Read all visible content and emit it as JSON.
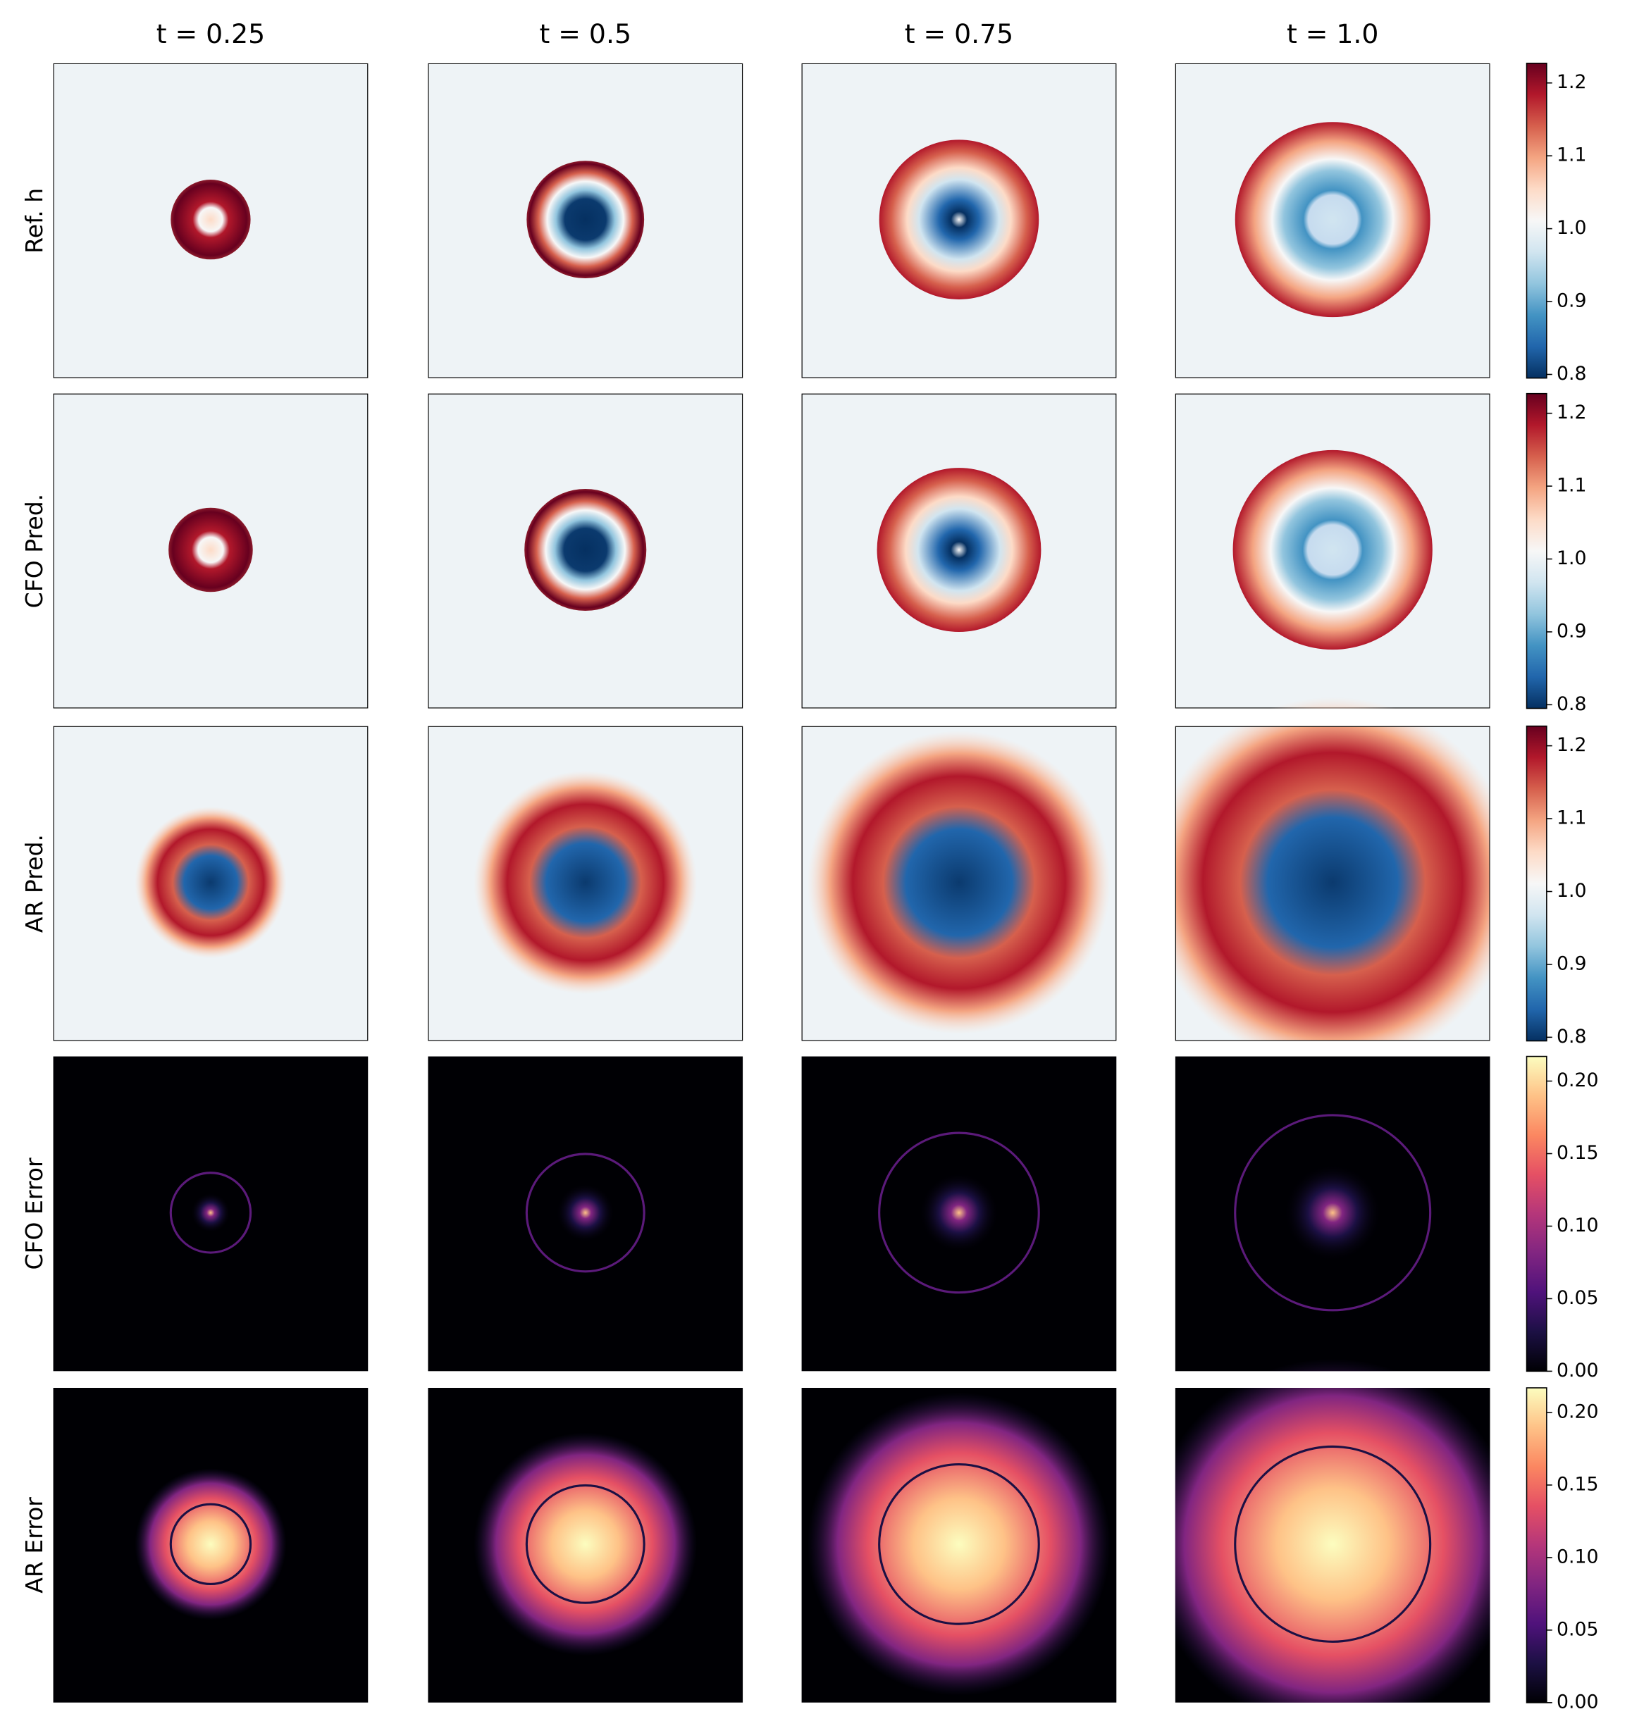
{
  "chart_data": {
    "type": "heatmap",
    "columns": [
      "t = 0.25",
      "t = 0.5",
      "t = 0.75",
      "t = 1.0"
    ],
    "rows": [
      "Ref. h",
      "CFO Pred.",
      "AR Pred.",
      "CFO Error",
      "AR Error"
    ],
    "colorbars": [
      {
        "ylim": [
          0.795,
          1.227
        ],
        "yticks": [
          0.8,
          0.9,
          {
            "value": 1,
            "label": "1.0"
          },
          1.1,
          1.2
        ],
        "colors": [
          "#053061",
          "#2166ac",
          "#4393c3",
          "#92c5de",
          "#d1e5f0",
          "#f7f7f7",
          "#fddbc7",
          "#f4a582",
          "#d6604d",
          "#b2182b",
          "#67001f"
        ]
      },
      {
        "ylim": [
          0.795,
          1.227
        ],
        "yticks": [
          0.8,
          0.9,
          {
            "value": 1,
            "label": "1.0"
          },
          1.1,
          1.2
        ],
        "colors": [
          "#053061",
          "#2166ac",
          "#4393c3",
          "#92c5de",
          "#d1e5f0",
          "#f7f7f7",
          "#fddbc7",
          "#f4a582",
          "#d6604d",
          "#b2182b",
          "#67001f"
        ]
      },
      {
        "ylim": [
          0.795,
          1.227
        ],
        "yticks": [
          0.8,
          0.9,
          {
            "value": 1,
            "label": "1.0"
          },
          1.1,
          1.2
        ],
        "colors": [
          "#053061",
          "#2166ac",
          "#4393c3",
          "#92c5de",
          "#d1e5f0",
          "#f7f7f7",
          "#fddbc7",
          "#f4a582",
          "#d6604d",
          "#b2182b",
          "#67001f"
        ]
      },
      {
        "ylim": [
          0,
          0.217
        ],
        "yticks": [
          {
            "value": 0,
            "label": "0.00"
          },
          0.05,
          {
            "value": 0.1,
            "label": "0.10"
          },
          0.15,
          {
            "value": 0.2,
            "label": "0.20"
          }
        ],
        "colors": [
          "#000004",
          "#1c1044",
          "#4f127b",
          "#812581",
          "#b5367a",
          "#e55064",
          "#fb8761",
          "#fec287",
          "#fcfdbf"
        ]
      },
      {
        "ylim": [
          0,
          0.217
        ],
        "yticks": [
          {
            "value": 0,
            "label": "0.00"
          },
          0.05,
          {
            "value": 0.1,
            "label": "0.10"
          },
          0.15,
          {
            "value": 0.2,
            "label": "0.20"
          }
        ],
        "colors": [
          "#000004",
          "#1c1044",
          "#4f127b",
          "#812581",
          "#b5367a",
          "#e55064",
          "#fb8761",
          "#fec287",
          "#fcfdbf"
        ]
      }
    ]
  }
}
